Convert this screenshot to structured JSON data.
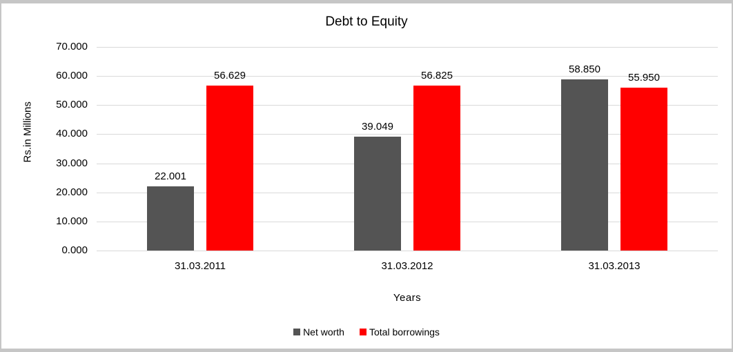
{
  "frame": {
    "background": "#ffffff",
    "border_color": "#c6c6c6"
  },
  "chart_data": {
    "type": "bar",
    "title": "Debt to Equity",
    "xlabel": "Years",
    "ylabel": "Rs.in Millions",
    "categories": [
      "31.03.2011",
      "31.03.2012",
      "31.03.2013"
    ],
    "series": [
      {
        "name": "Net worth",
        "color": "#545454",
        "values": [
          22.001,
          39.049,
          58.85
        ],
        "value_labels": [
          "22.001",
          "39.049",
          "58.850"
        ]
      },
      {
        "name": "Total borrowings",
        "color": "#ff0000",
        "values": [
          56.629,
          56.825,
          55.95
        ],
        "value_labels": [
          "56.629",
          "56.825",
          "55.950"
        ]
      }
    ],
    "ylim": [
      0,
      70
    ],
    "ytick_step": 10,
    "ytick_labels": [
      "0.000",
      "10.000",
      "20.000",
      "30.000",
      "40.000",
      "50.000",
      "60.000",
      "70.000"
    ],
    "grid": true,
    "gridline_color": "#d9d9d9",
    "legend_position": "bottom"
  }
}
